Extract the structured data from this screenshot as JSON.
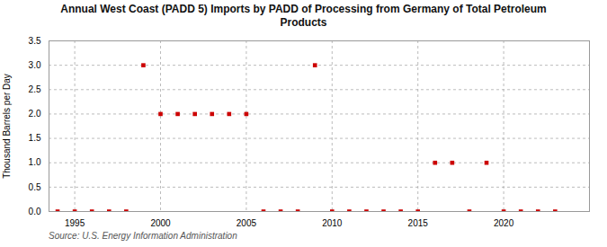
{
  "chart_data": {
    "type": "scatter",
    "title": "Annual West Coast (PADD 5) Imports by PADD of Processing from Germany of Total Petroleum\nProducts",
    "caption": "Source: U.S. Energy Information Administration",
    "y_label": "Thousand Barrels per Day",
    "x": [
      1994,
      1995,
      1996,
      1997,
      1998,
      1999,
      2000,
      2001,
      2002,
      2003,
      2004,
      2005,
      2006,
      2007,
      2008,
      2009,
      2010,
      2011,
      2012,
      2013,
      2014,
      2015,
      2016,
      2017,
      2018,
      2019,
      2020,
      2021,
      2022,
      2023
    ],
    "values": [
      0,
      0,
      0,
      0,
      0,
      3.0,
      2.0,
      2.0,
      2.0,
      2.0,
      2.0,
      2.0,
      0,
      0,
      0,
      3.0,
      0,
      0,
      0,
      0,
      0,
      0,
      1.0,
      1.0,
      0,
      1.0,
      0,
      0,
      0,
      0
    ],
    "color": "#cc0000",
    "marker": "square",
    "xlim": [
      1993.5,
      2025
    ],
    "ylim": [
      0,
      3.5
    ],
    "xticks": [
      1995,
      2000,
      2005,
      2010,
      2015,
      2020
    ],
    "yticks": [
      {
        "value": 0.0,
        "label": "0.0"
      },
      0.5,
      {
        "value": 1.0,
        "label": "1.0"
      },
      1.5,
      {
        "value": 2.0,
        "label": "2.0"
      },
      2.5,
      {
        "value": 3.0,
        "label": "3.0"
      },
      3.5
    ],
    "grid": true
  }
}
